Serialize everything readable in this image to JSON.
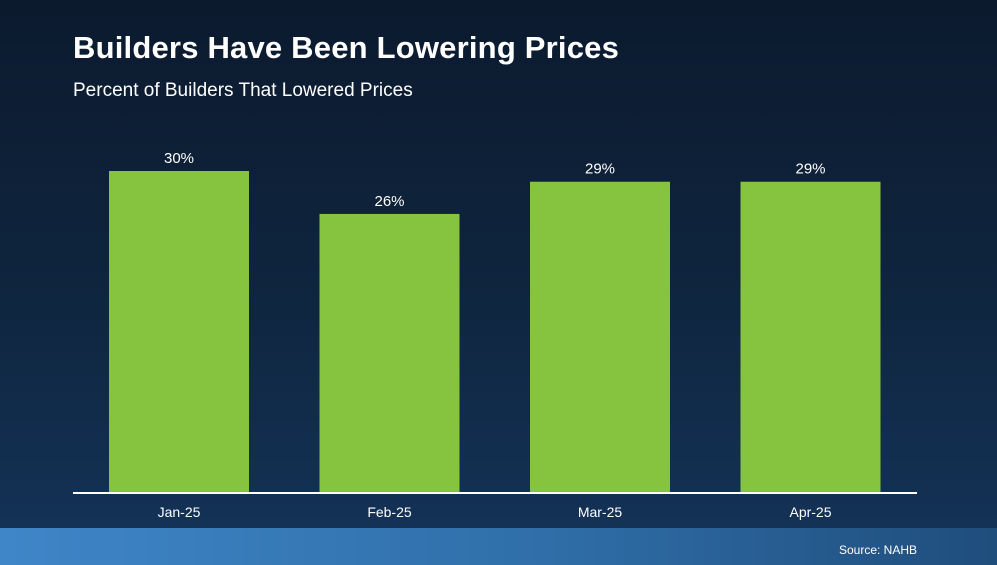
{
  "chart_data": {
    "type": "bar",
    "title": "Builders Have Been Lowering Prices",
    "subtitle": "Percent of Builders That Lowered Prices",
    "categories": [
      "Jan-25",
      "Feb-25",
      "Mar-25",
      "Apr-25"
    ],
    "values": [
      30,
      26,
      29,
      29
    ],
    "data_labels": [
      "30%",
      "26%",
      "29%",
      "29%"
    ],
    "xlabel": "",
    "ylabel": "",
    "ylim": [
      0,
      30
    ],
    "grid": false,
    "bar_color": "#86c440"
  },
  "footer": {
    "source": "Source: NAHB"
  },
  "colors": {
    "bar": "#86c440",
    "footer_start": "#3f86c8",
    "footer_end": "#1f4d7c"
  }
}
